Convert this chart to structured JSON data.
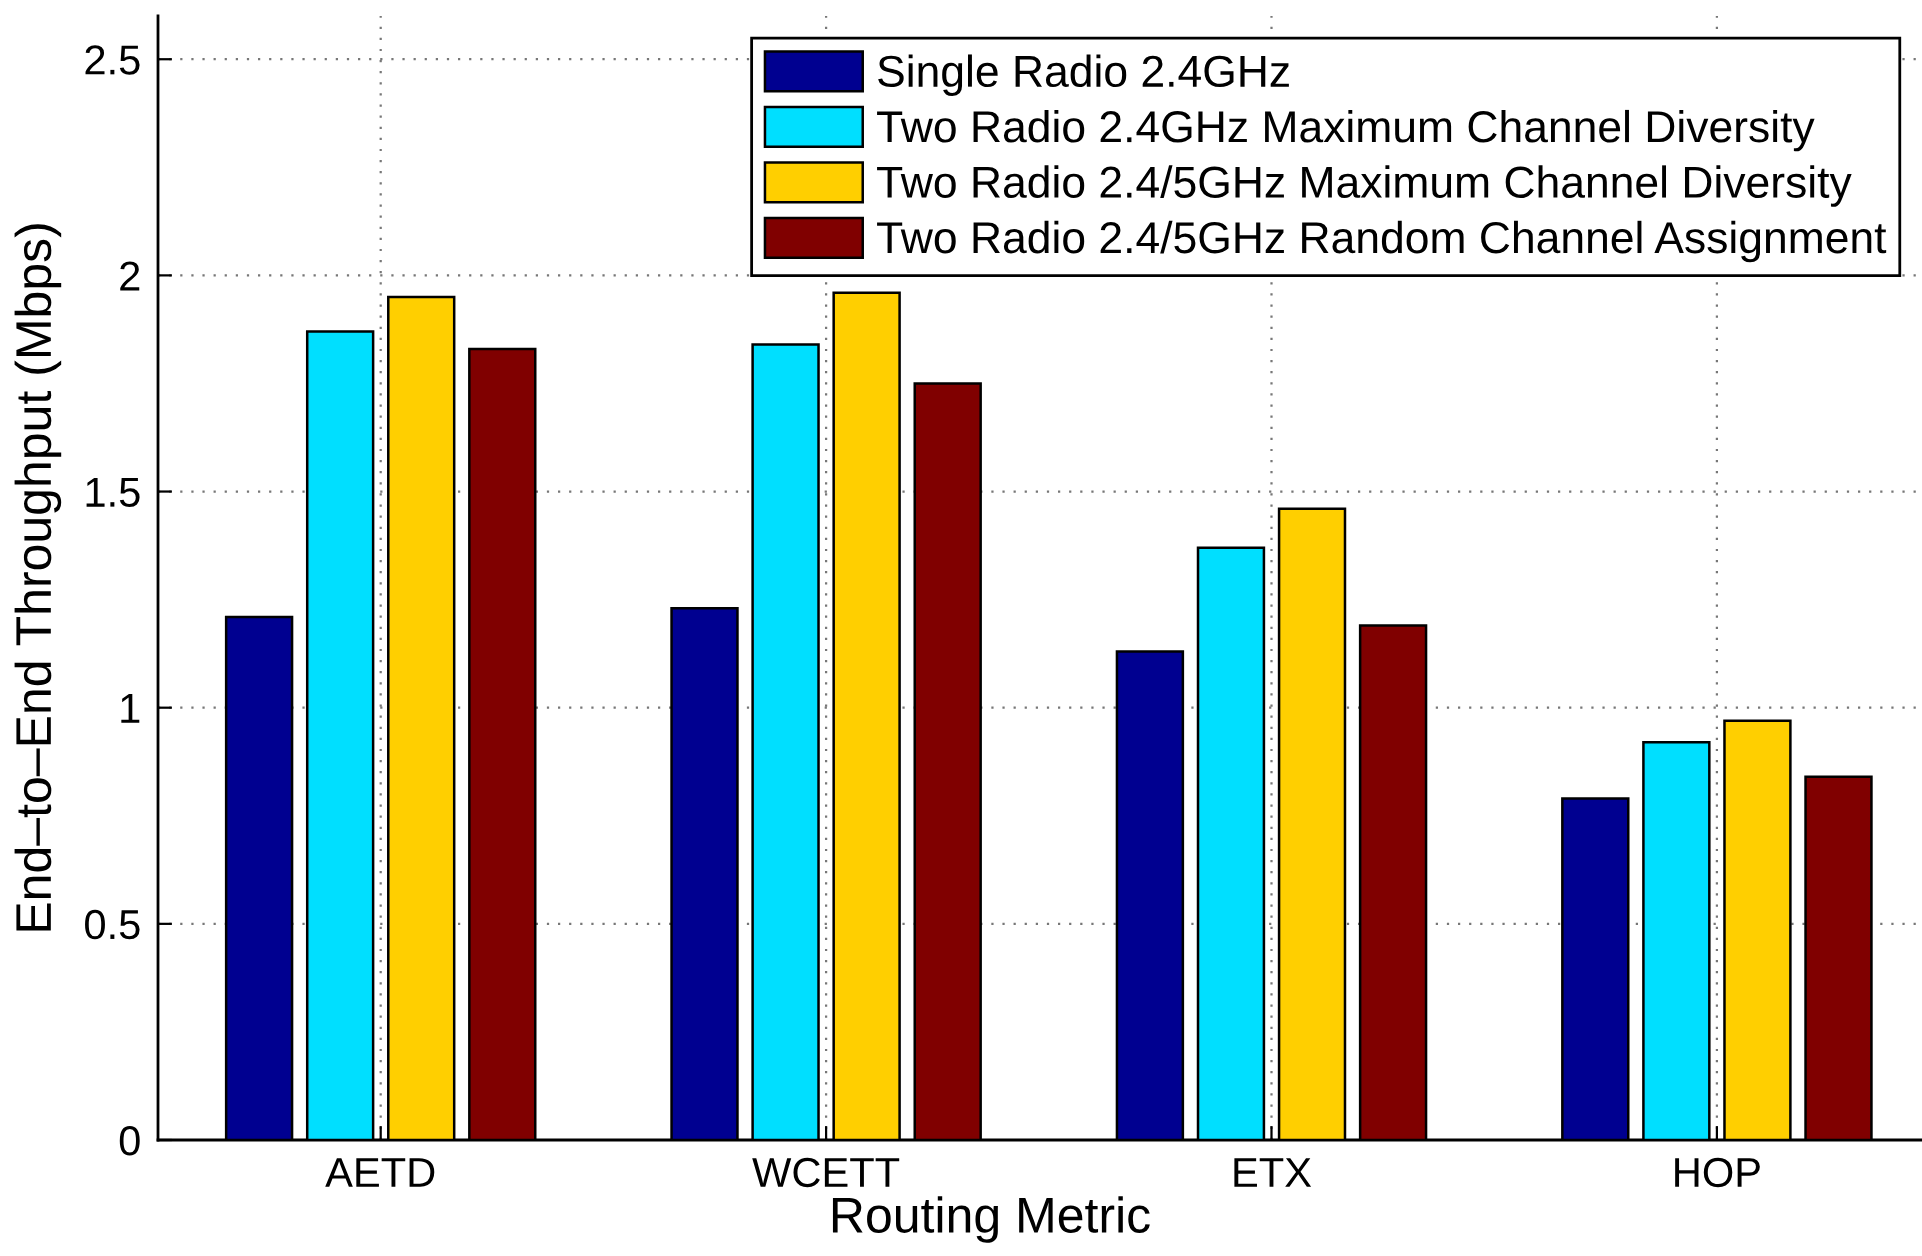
{
  "chart_data": {
    "type": "bar",
    "xlabel": "Routing Metric",
    "ylabel": "End–to–End Throughput (Mbps)",
    "categories": [
      "AETD",
      "WCETT",
      "ETX",
      "HOP"
    ],
    "series": [
      {
        "name": "Single Radio 2.4GHz",
        "color": "#000090",
        "values": [
          1.21,
          1.23,
          1.13,
          0.79
        ]
      },
      {
        "name": "Two Radio 2.4GHz Maximum Channel Diversity",
        "color": "#00dfff",
        "values": [
          1.87,
          1.84,
          1.37,
          0.92
        ]
      },
      {
        "name": "Two Radio 2.4/5GHz Maximum Channel Diversity",
        "color": "#ffcf00",
        "values": [
          1.95,
          1.96,
          1.46,
          0.97
        ]
      },
      {
        "name": "Two Radio 2.4/5GHz Random Channel Assignment",
        "color": "#800000",
        "values": [
          1.83,
          1.75,
          1.19,
          0.84
        ]
      }
    ],
    "ylim": [
      0,
      2.6
    ],
    "yticks": [
      0,
      0.5,
      1,
      1.5,
      2,
      2.5
    ],
    "grid": true,
    "legend": "top right"
  }
}
